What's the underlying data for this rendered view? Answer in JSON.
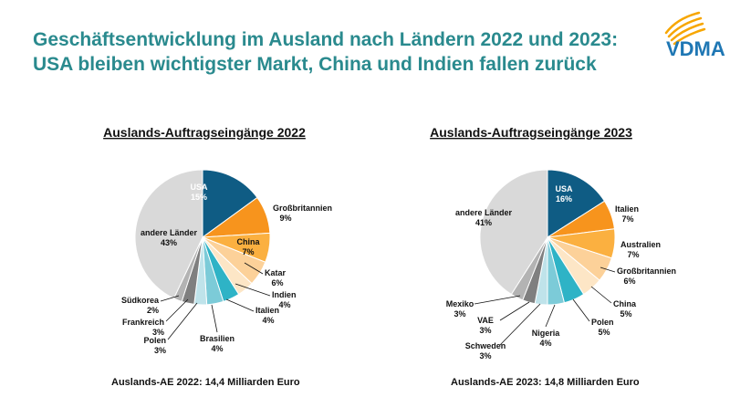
{
  "header": {
    "title_line1": "Geschäftsentwicklung im Ausland nach Ländern 2022 und 2023:",
    "title_line2": "USA bleiben wichtigster Markt, China und Indien fallen zurück",
    "logo_text": "VDMA"
  },
  "colors": {
    "headline": "#2a8a8e",
    "usa": "#0f5c84",
    "orange": "#f7941d",
    "teal": "#2eb3c6",
    "gray": "#9a9a9a",
    "other": "#d9d9d9"
  },
  "chart_data": [
    {
      "type": "pie",
      "title": "Auslands-Auftragseingänge 2022",
      "footnote": "Auslands-AE 2022: 14,4 Milliarden Euro",
      "slices": [
        {
          "label": "USA",
          "value": 15,
          "pct": "15%",
          "color": "#0f5c84"
        },
        {
          "label": "Großbritannien",
          "value": 9,
          "pct": "9%",
          "color": "#f7941d"
        },
        {
          "label": "China",
          "value": 7,
          "pct": "7%",
          "color": "#fbb040"
        },
        {
          "label": "Katar",
          "value": 6,
          "pct": "6%",
          "color": "#fcd199"
        },
        {
          "label": "Indien",
          "value": 4,
          "pct": "4%",
          "color": "#fde6c6"
        },
        {
          "label": "Italien",
          "value": 4,
          "pct": "4%",
          "color": "#2eb3c6"
        },
        {
          "label": "Brasilien",
          "value": 4,
          "pct": "4%",
          "color": "#7ccbd8"
        },
        {
          "label": "Polen",
          "value": 3,
          "pct": "3%",
          "color": "#bfe3ea"
        },
        {
          "label": "Frankreich",
          "value": 3,
          "pct": "3%",
          "color": "#7f7f7f"
        },
        {
          "label": "Südkorea",
          "value": 2,
          "pct": "2%",
          "color": "#b3b3b3"
        },
        {
          "label": "andere Länder",
          "value": 43,
          "pct": "43%",
          "color": "#d9d9d9"
        }
      ]
    },
    {
      "type": "pie",
      "title": "Auslands-Auftragseingänge 2023",
      "footnote": "Auslands-AE 2023: 14,8 Milliarden Euro",
      "slices": [
        {
          "label": "USA",
          "value": 16,
          "pct": "16%",
          "color": "#0f5c84"
        },
        {
          "label": "Italien",
          "value": 7,
          "pct": "7%",
          "color": "#f7941d"
        },
        {
          "label": "Australien",
          "value": 7,
          "pct": "7%",
          "color": "#fbb040"
        },
        {
          "label": "Großbritannien",
          "value": 6,
          "pct": "6%",
          "color": "#fcd199"
        },
        {
          "label": "China",
          "value": 5,
          "pct": "5%",
          "color": "#fde6c6"
        },
        {
          "label": "Polen",
          "value": 5,
          "pct": "5%",
          "color": "#2eb3c6"
        },
        {
          "label": "Nigeria",
          "value": 4,
          "pct": "4%",
          "color": "#7ccbd8"
        },
        {
          "label": "Schweden",
          "value": 3,
          "pct": "3%",
          "color": "#bfe3ea"
        },
        {
          "label": "VAE",
          "value": 3,
          "pct": "3%",
          "color": "#7f7f7f"
        },
        {
          "label": "Mexiko",
          "value": 3,
          "pct": "3%",
          "color": "#b3b3b3"
        },
        {
          "label": "andere Länder",
          "value": 41,
          "pct": "41%",
          "color": "#d9d9d9"
        }
      ]
    }
  ]
}
